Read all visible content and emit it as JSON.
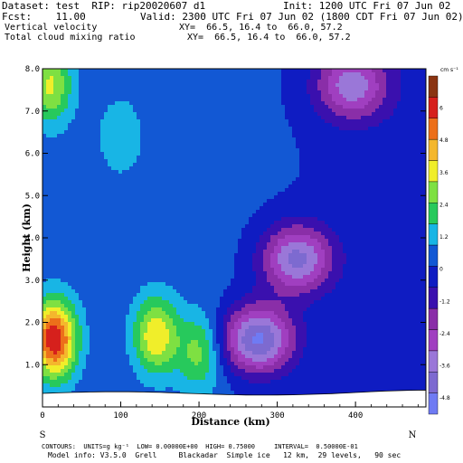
{
  "header": {
    "dataset": "Dataset: test  RIP: rip20020607 d1",
    "init": "Init: 1200 UTC Fri 07 Jun 02",
    "fcst": "Fcst:    11.00",
    "valid": "Valid: 2300 UTC Fri 07 Jun 02 (1800 CDT Fri 07 Jun 02)",
    "field1": "Vertical velocity",
    "xy1": "XY=  66.5, 16.4 to  66.0, 57.2",
    "field2": "Total cloud mixing ratio",
    "xy2": "XY=  66.5, 16.4 to  66.0, 57.2"
  },
  "footer": {
    "contours": "CONTOURS:  UNITS=g kg⁻¹  LOW= 0.00000E+00  HIGH= 0.75000     INTERVAL=  0.50000E-01",
    "model_info": "Model info: V3.5.0  Grell     Blackadar  Simple ice   12 km,  29 levels,   90 sec"
  },
  "colors": {
    "palette": [
      "#6f7bf3",
      "#7d6ad0",
      "#9a77d8",
      "#a03fc0",
      "#8a2ea8",
      "#3a10ae",
      "#0f1cc2",
      "#1258d4",
      "#18b5e5",
      "#27c95c",
      "#7ee042",
      "#f0ee2a",
      "#f4b72d",
      "#ec6f1a",
      "#d6201c",
      "#8a3412"
    ],
    "ground": "#ffffff"
  },
  "chart_data": {
    "type": "heatmap",
    "title": "Vertical velocity",
    "xlabel": "Distance (km)",
    "ylabel": "Height (km)",
    "xlim": [
      0,
      490
    ],
    "ylim": [
      0,
      8.0
    ],
    "x_ticks": [
      "0",
      "100",
      "200",
      "300",
      "400"
    ],
    "y_ticks": [
      "1.0",
      "2.0",
      "3.0",
      "4.0",
      "5.0",
      "6.0",
      "7.0",
      "8.0"
    ],
    "endpoint_labels": {
      "left": "S",
      "right": "N"
    },
    "colorbar": {
      "unit": "cm s⁻¹",
      "labels": [
        "6",
        "4.8",
        "3.6",
        "2.4",
        "1.2",
        "0",
        "-1.2",
        "-2.4",
        "-3.6",
        "-4.8"
      ],
      "min": -5.4,
      "max": 7.2,
      "interval": 0.6
    },
    "features": [
      {
        "kind": "updraft",
        "x_km": 15,
        "z_km": 1.6,
        "w": 6.0
      },
      {
        "kind": "updraft",
        "x_km": 145,
        "z_km": 1.7,
        "w": 3.6
      },
      {
        "kind": "updraft",
        "x_km": 200,
        "z_km": 1.3,
        "w": 2.4
      },
      {
        "kind": "updraft",
        "x_km": 100,
        "z_km": 6.4,
        "w": 1.2
      },
      {
        "kind": "updraft",
        "x_km": 10,
        "z_km": 7.6,
        "w": 3.0
      },
      {
        "kind": "downdraft",
        "x_km": 275,
        "z_km": 1.6,
        "w": -5.0
      },
      {
        "kind": "downdraft",
        "x_km": 325,
        "z_km": 3.5,
        "w": -4.2
      },
      {
        "kind": "downdraft",
        "x_km": 395,
        "z_km": 7.6,
        "w": -3.6
      }
    ],
    "contour_field": {
      "name": "Total cloud mixing ratio",
      "low": 0.0,
      "high": 0.75,
      "interval": 0.05
    }
  }
}
